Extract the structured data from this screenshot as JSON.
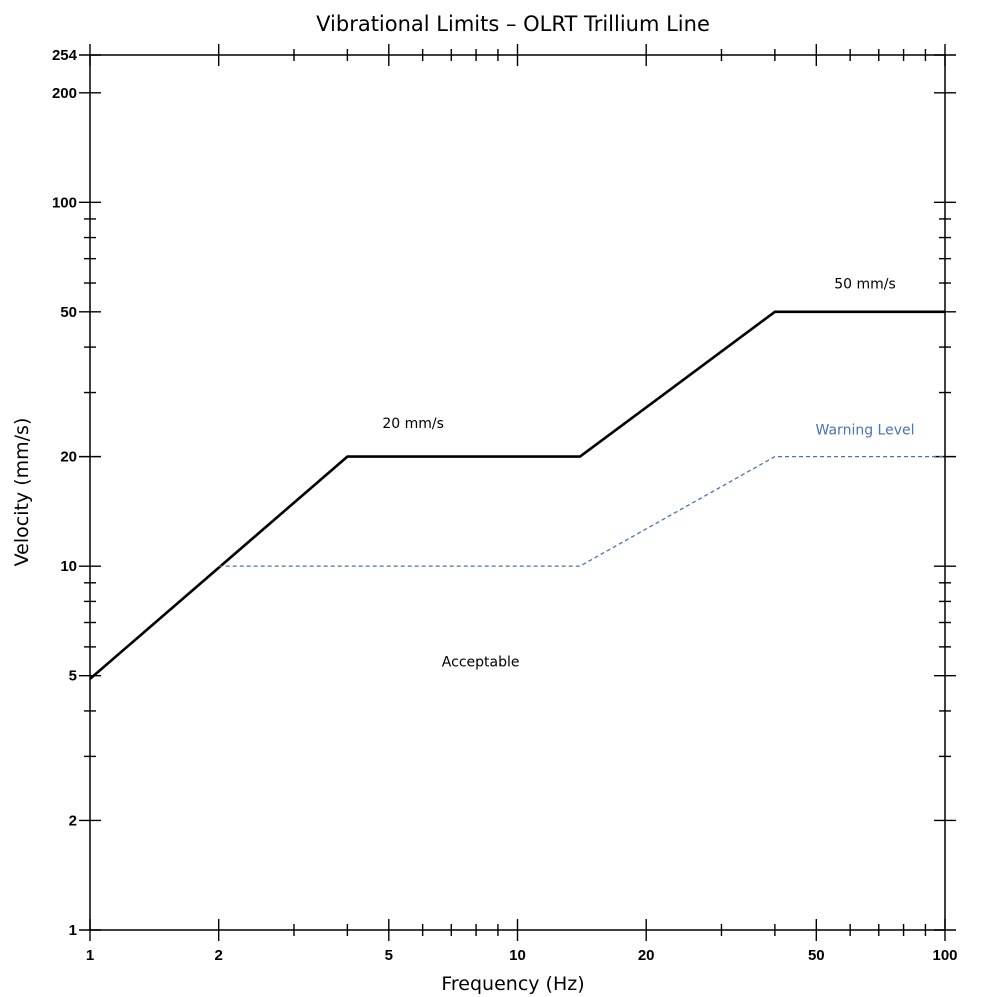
{
  "chart_data": {
    "type": "line",
    "title": "Vibrational Limits – OLRT Trillium Line",
    "xlabel": "Frequency (Hz)",
    "ylabel": "Velocity (mm/s)",
    "x_scale": "log",
    "y_scale": "log",
    "xlim": [
      1,
      100
    ],
    "ylim": [
      1,
      254
    ],
    "grid": false,
    "x_tick_labels": [
      {
        "value": 1,
        "label": "1"
      },
      {
        "value": 2,
        "label": "2"
      },
      {
        "value": 5,
        "label": "5"
      },
      {
        "value": 10,
        "label": "10"
      },
      {
        "value": 20,
        "label": "20"
      },
      {
        "value": 50,
        "label": "50"
      },
      {
        "value": 100,
        "label": "100"
      }
    ],
    "x_minor_ticks": [
      3,
      4,
      6,
      7,
      8,
      9,
      30,
      40,
      60,
      70,
      80,
      90
    ],
    "y_tick_labels": [
      {
        "value": 1,
        "label": "1"
      },
      {
        "value": 2,
        "label": "2"
      },
      {
        "value": 5,
        "label": "5"
      },
      {
        "value": 10,
        "label": "10"
      },
      {
        "value": 20,
        "label": "20"
      },
      {
        "value": 50,
        "label": "50"
      },
      {
        "value": 100,
        "label": "100"
      },
      {
        "value": 200,
        "label": "200"
      },
      {
        "value": 254,
        "label": "254"
      }
    ],
    "y_minor_ticks": [
      3,
      4,
      6,
      7,
      8,
      9,
      30,
      40,
      60,
      70,
      80,
      90
    ],
    "series": [
      {
        "style": "solid",
        "color": "#000000",
        "x": [
          1,
          4,
          14,
          40,
          100
        ],
        "y": [
          4.9,
          20,
          20,
          50,
          50
        ]
      },
      {
        "style": "dashed",
        "color": "#4a72b8",
        "x": [
          2,
          14,
          40,
          100
        ],
        "y": [
          10,
          10,
          20,
          20
        ]
      }
    ],
    "annotations": [
      {
        "id": "a20",
        "text": "20 mm/s",
        "x": 5.7,
        "y": 24,
        "style": "normal"
      },
      {
        "id": "a50",
        "text": "50 mm/s",
        "x": 65,
        "y": 58,
        "style": "normal"
      },
      {
        "id": "warn",
        "text": "Warning Level",
        "x": 65,
        "y": 23,
        "style": "warning"
      },
      {
        "id": "acc",
        "text": "Acceptable",
        "x": 8.2,
        "y": 5.3,
        "style": "normal"
      }
    ]
  }
}
